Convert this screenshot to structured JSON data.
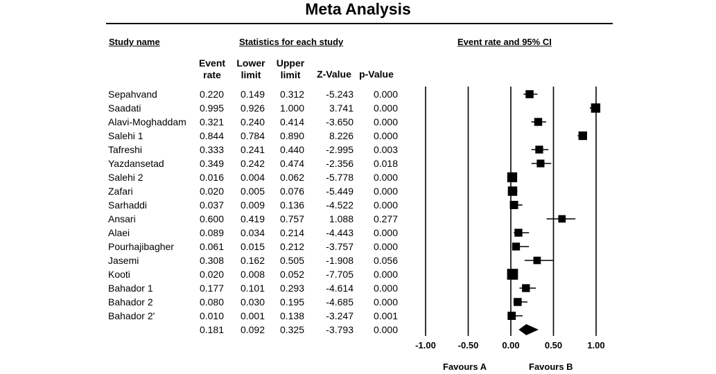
{
  "header": {
    "title": "Meta Analysis",
    "study_name": "Study name",
    "stats": "Statistics for each study",
    "ci": "Event rate and 95% CI"
  },
  "columns": [
    {
      "line1": "Event",
      "line2": "rate"
    },
    {
      "line1": "Lower",
      "line2": "limit"
    },
    {
      "line1": "Upper",
      "line2": "limit"
    },
    {
      "line1": "Z-Value",
      "line2": ""
    },
    {
      "line1": "p-Value",
      "line2": ""
    }
  ],
  "favours": {
    "a": "Favours A",
    "b": "Favours B"
  },
  "chart_data": {
    "type": "forest",
    "xlim": [
      -1.0,
      1.0
    ],
    "xticks": [
      "-1.00",
      "-0.50",
      "0.00",
      "0.50",
      "1.00"
    ],
    "studies": [
      {
        "name": "Sepahvand",
        "rate": "0.220",
        "lower": "0.149",
        "upper": "0.312",
        "z": "-5.243",
        "p": "0.000"
      },
      {
        "name": "Saadati",
        "rate": "0.995",
        "lower": "0.926",
        "upper": "1.000",
        "z": "3.741",
        "p": "0.000"
      },
      {
        "name": "Alavi-Moghaddam",
        "rate": "0.321",
        "lower": "0.240",
        "upper": "0.414",
        "z": "-3.650",
        "p": "0.000"
      },
      {
        "name": "Salehi 1",
        "rate": "0.844",
        "lower": "0.784",
        "upper": "0.890",
        "z": "8.226",
        "p": "0.000"
      },
      {
        "name": "Tafreshi",
        "rate": "0.333",
        "lower": "0.241",
        "upper": "0.440",
        "z": "-2.995",
        "p": "0.003"
      },
      {
        "name": "Yazdansetad",
        "rate": "0.349",
        "lower": "0.242",
        "upper": "0.474",
        "z": "-2.356",
        "p": "0.018"
      },
      {
        "name": "Salehi 2",
        "rate": "0.016",
        "lower": "0.004",
        "upper": "0.062",
        "z": "-5.778",
        "p": "0.000"
      },
      {
        "name": "Zafari",
        "rate": "0.020",
        "lower": "0.005",
        "upper": "0.076",
        "z": "-5.449",
        "p": "0.000"
      },
      {
        "name": "Sarhaddi",
        "rate": "0.037",
        "lower": "0.009",
        "upper": "0.136",
        "z": "-4.522",
        "p": "0.000"
      },
      {
        "name": "Ansari",
        "rate": "0.600",
        "lower": "0.419",
        "upper": "0.757",
        "z": "1.088",
        "p": "0.277"
      },
      {
        "name": "Alaei",
        "rate": "0.089",
        "lower": "0.034",
        "upper": "0.214",
        "z": "-4.443",
        "p": "0.000"
      },
      {
        "name": "Pourhajibagher",
        "rate": "0.061",
        "lower": "0.015",
        "upper": "0.212",
        "z": "-3.757",
        "p": "0.000"
      },
      {
        "name": "Jasemi",
        "rate": "0.308",
        "lower": "0.162",
        "upper": "0.505",
        "z": "-1.908",
        "p": "0.056"
      },
      {
        "name": "Kooti",
        "rate": "0.020",
        "lower": "0.008",
        "upper": "0.052",
        "z": "-7.705",
        "p": "0.000"
      },
      {
        "name": "Bahador 1",
        "rate": "0.177",
        "lower": "0.101",
        "upper": "0.293",
        "z": "-4.614",
        "p": "0.000"
      },
      {
        "name": "Bahador 2",
        "rate": "0.080",
        "lower": "0.030",
        "upper": "0.195",
        "z": "-4.685",
        "p": "0.000"
      },
      {
        "name": "Bahador 2'",
        "rate": "0.010",
        "lower": "0.001",
        "upper": "0.138",
        "z": "-3.247",
        "p": "0.001"
      }
    ],
    "summary": {
      "name": "",
      "rate": "0.181",
      "lower": "0.092",
      "upper": "0.325",
      "z": "-3.793",
      "p": "0.000"
    }
  }
}
